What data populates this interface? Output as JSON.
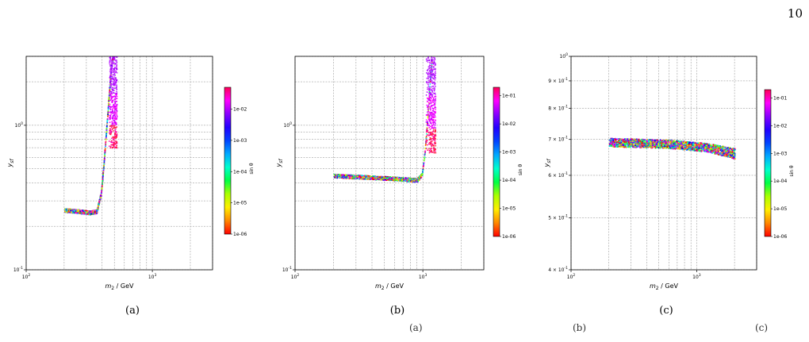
{
  "page": {
    "number": "10"
  },
  "captions": [
    "(a)",
    "(b)",
    "(c)"
  ],
  "bottom_text": [
    "(a)",
    "(b)",
    "(c)"
  ],
  "chart_data": [
    {
      "type": "scatter",
      "xlabel": "m_2 / GeV",
      "ylabel": "y_sf",
      "xscale": "log",
      "yscale": "log",
      "xlim": [
        100,
        3000
      ],
      "ylim": [
        0.1,
        3.0
      ],
      "x_ticks": [
        {
          "v": 100,
          "label": "10^2"
        },
        {
          "v": 1000,
          "label": "10^3"
        }
      ],
      "y_ticks": [
        {
          "v": 0.1,
          "label": "10^-1"
        },
        {
          "v": 1,
          "label": "10^0"
        }
      ],
      "grid": true,
      "colorbar": {
        "label": "sin θ",
        "scale": "log",
        "range": [
          1e-06,
          0.05
        ],
        "ticks": [
          "1e-06",
          "1e-05",
          "1e-04",
          "1e-03",
          "1e-02"
        ]
      },
      "band": [
        {
          "x": 200,
          "y": 0.26
        },
        {
          "x": 260,
          "y": 0.255
        },
        {
          "x": 320,
          "y": 0.25
        },
        {
          "x": 360,
          "y": 0.255
        },
        {
          "x": 390,
          "y": 0.34
        },
        {
          "x": 410,
          "y": 0.55
        },
        {
          "x": 430,
          "y": 0.95
        },
        {
          "x": 450,
          "y": 1.6
        },
        {
          "x": 470,
          "y": 2.6
        },
        {
          "x": 485,
          "y": 3.0
        }
      ],
      "spike": {
        "x_range": [
          450,
          520
        ],
        "y_range": [
          0.7,
          3.0
        ]
      }
    },
    {
      "type": "scatter",
      "xlabel": "m_2 / GeV",
      "ylabel": "y_sf",
      "xscale": "log",
      "yscale": "log",
      "xlim": [
        100,
        3000
      ],
      "ylim": [
        0.1,
        3.0
      ],
      "x_ticks": [
        {
          "v": 100,
          "label": "10^2"
        },
        {
          "v": 1000,
          "label": "10^3"
        }
      ],
      "y_ticks": [
        {
          "v": 0.1,
          "label": "10^-1"
        },
        {
          "v": 1,
          "label": "10^0"
        }
      ],
      "grid": true,
      "colorbar": {
        "label": "sin θ",
        "scale": "log",
        "range": [
          1e-06,
          0.2
        ],
        "ticks": [
          "1e-06",
          "1e-05",
          "1e-04",
          "1e-03",
          "1e-02",
          "1e-01"
        ]
      },
      "band": [
        {
          "x": 200,
          "y": 0.45
        },
        {
          "x": 350,
          "y": 0.44
        },
        {
          "x": 600,
          "y": 0.43
        },
        {
          "x": 900,
          "y": 0.42
        },
        {
          "x": 980,
          "y": 0.46
        },
        {
          "x": 1030,
          "y": 0.65
        },
        {
          "x": 1080,
          "y": 1.1
        },
        {
          "x": 1130,
          "y": 2.0
        },
        {
          "x": 1180,
          "y": 3.0
        }
      ],
      "spike": {
        "x_range": [
          1050,
          1250
        ],
        "y_range": [
          0.65,
          3.0
        ]
      }
    },
    {
      "type": "scatter",
      "xlabel": "m_2 / GeV",
      "ylabel": "y_sf",
      "xscale": "log",
      "yscale": "log",
      "xlim": [
        100,
        3000
      ],
      "ylim": [
        0.4,
        1.0
      ],
      "x_ticks": [
        {
          "v": 100,
          "label": "10^2"
        },
        {
          "v": 1000,
          "label": "10^3"
        }
      ],
      "y_ticks": [
        {
          "v": 0.4,
          "label": "4 × 10^-1"
        },
        {
          "v": 0.5,
          "label": "5 × 10^-1"
        },
        {
          "v": 0.6,
          "label": "6 × 10^-1"
        },
        {
          "v": 0.7,
          "label": "7 × 10^-1"
        },
        {
          "v": 0.8,
          "label": "8 × 10^-1"
        },
        {
          "v": 0.9,
          "label": "9 × 10^-1"
        },
        {
          "v": 1.0,
          "label": "10^0"
        }
      ],
      "grid": true,
      "colorbar": {
        "label": "sin θ",
        "scale": "log",
        "range": [
          1e-06,
          0.2
        ],
        "ticks": [
          "1e-06",
          "1e-05",
          "1e-04",
          "1e-03",
          "1e-02",
          "1e-01"
        ]
      },
      "band_upper": [
        {
          "x": 200,
          "y": 0.705
        },
        {
          "x": 600,
          "y": 0.7
        },
        {
          "x": 1200,
          "y": 0.69
        },
        {
          "x": 2000,
          "y": 0.675
        }
      ],
      "band_lower": [
        {
          "x": 200,
          "y": 0.68
        },
        {
          "x": 600,
          "y": 0.675
        },
        {
          "x": 1200,
          "y": 0.665
        },
        {
          "x": 2000,
          "y": 0.645
        }
      ]
    }
  ]
}
